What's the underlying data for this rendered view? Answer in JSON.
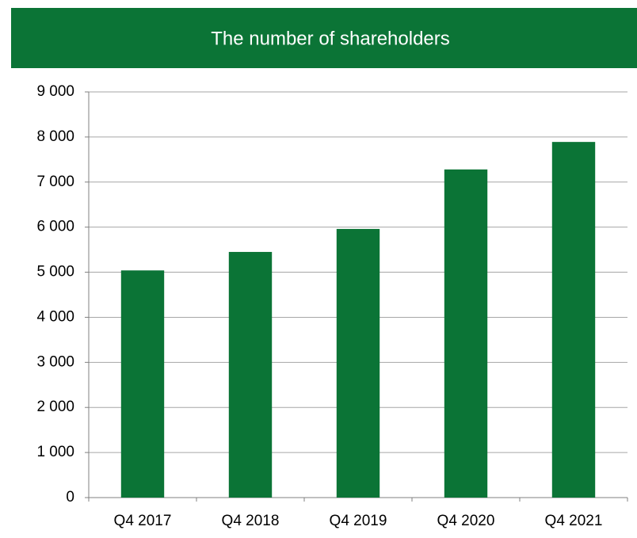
{
  "chart_data": {
    "type": "bar",
    "title": "The number of shareholders",
    "categories": [
      "Q4 2017",
      "Q4 2018",
      "Q4 2019",
      "Q4 2020",
      "Q4 2021"
    ],
    "values": [
      5040,
      5450,
      5960,
      7280,
      7890
    ],
    "color": "#0b7436",
    "ylim": [
      0,
      9000
    ],
    "yticks": [
      0,
      {
        "value": 1000,
        "label": "1 000"
      },
      {
        "value": 2000,
        "label": "2 000"
      },
      {
        "value": 3000,
        "label": "3 000"
      },
      {
        "value": 4000,
        "label": "4 000"
      },
      {
        "value": 5000,
        "label": "5 000"
      },
      {
        "value": 6000,
        "label": "6 000"
      },
      {
        "value": 7000,
        "label": "7 000"
      },
      {
        "value": 8000,
        "label": "8 000"
      },
      {
        "value": 9000,
        "label": "9 000"
      }
    ],
    "grid": true
  }
}
